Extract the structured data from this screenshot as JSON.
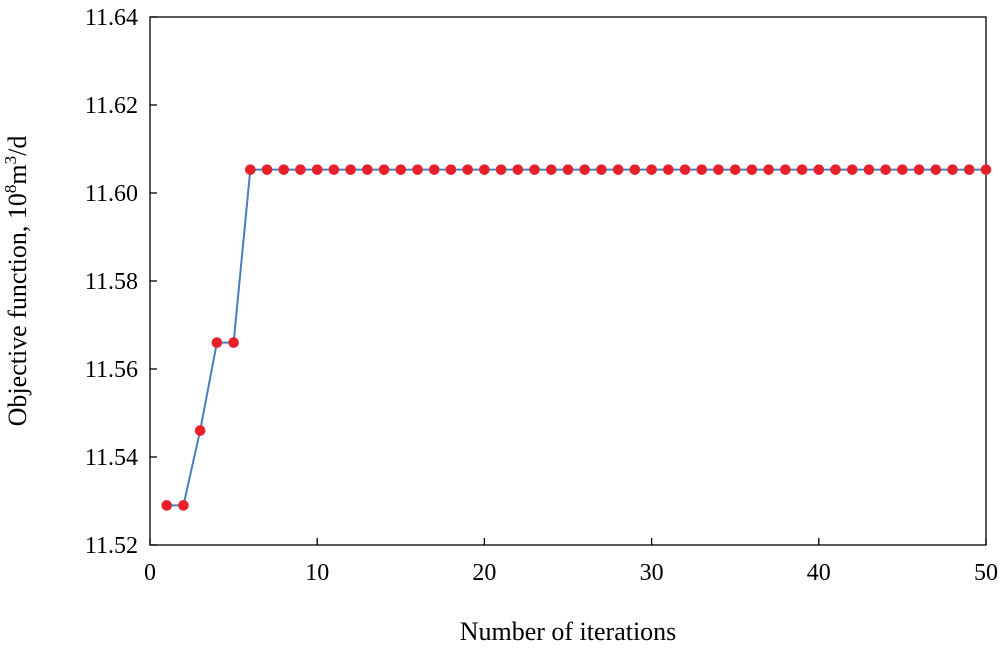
{
  "chart_data": {
    "type": "line",
    "xlabel": "Number of iterations",
    "ylabel": {
      "prefix": "Objective function, 10",
      "sup1": "8",
      "mid": "m",
      "sup2": "3",
      "suffix": "/d"
    },
    "xlim": [
      0,
      50
    ],
    "ylim": [
      11.52,
      11.64
    ],
    "xticks": [
      "0",
      "10",
      "20",
      "30",
      "40",
      "50"
    ],
    "yticks": [
      "11.52",
      "11.54",
      "11.56",
      "11.58",
      "11.60",
      "11.62",
      "11.64"
    ],
    "grid": false,
    "legend": "none",
    "series": [
      {
        "x": [
          1,
          2,
          3,
          4,
          5,
          6,
          7,
          8,
          9,
          10,
          11,
          12,
          13,
          14,
          15,
          16,
          17,
          18,
          19,
          20,
          21,
          22,
          23,
          24,
          25,
          26,
          27,
          28,
          29,
          30,
          31,
          32,
          33,
          34,
          35,
          36,
          37,
          38,
          39,
          40,
          41,
          42,
          43,
          44,
          45,
          46,
          47,
          48,
          49,
          50
        ],
        "values": [
          11.529,
          11.529,
          11.546,
          11.566,
          11.566,
          11.6053,
          11.6053,
          11.6053,
          11.6053,
          11.6053,
          11.6053,
          11.6053,
          11.6053,
          11.6053,
          11.6053,
          11.6053,
          11.6053,
          11.6053,
          11.6053,
          11.6053,
          11.6053,
          11.6053,
          11.6053,
          11.6053,
          11.6053,
          11.6053,
          11.6053,
          11.6053,
          11.6053,
          11.6053,
          11.6053,
          11.6053,
          11.6053,
          11.6053,
          11.6053,
          11.6053,
          11.6053,
          11.6053,
          11.6053,
          11.6053,
          11.6053,
          11.6053,
          11.6053,
          11.6053,
          11.6053,
          11.6053,
          11.6053,
          11.6053,
          11.6053,
          11.6053
        ]
      }
    ],
    "colors": {
      "line": "#4a7ebb",
      "marker": "#e8202a",
      "axis": "#000000"
    }
  }
}
